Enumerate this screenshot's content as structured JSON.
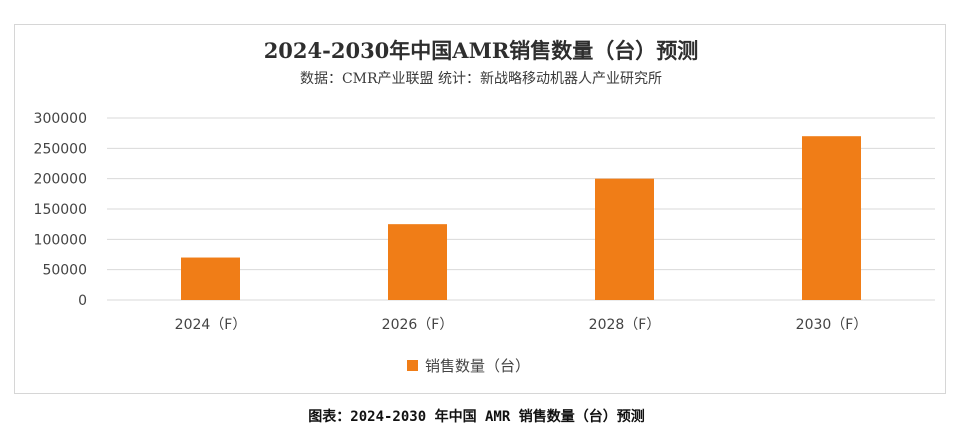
{
  "chart_data": {
    "type": "bar",
    "title": "2024-2030年中国AMR销售数量（台）预测",
    "subtitle": "数据：CMR产业联盟 统计：新战略移动机器人产业研究所",
    "categories": [
      "2024（F）",
      "2026（F）",
      "2028（F）",
      "2030（F）"
    ],
    "series": [
      {
        "name": "销售数量（台）",
        "values": [
          70000,
          125000,
          200000,
          270000
        ],
        "color": "#f07d17"
      }
    ],
    "y_ticks": [
      "0",
      "50000",
      "100000",
      "150000",
      "200000",
      "250000",
      "300000"
    ],
    "ylim": [
      0,
      300000
    ],
    "grid": true,
    "legend_position": "bottom-center"
  },
  "caption": "图表：2024-2030 年中国 AMR 销售数量（台）预测"
}
